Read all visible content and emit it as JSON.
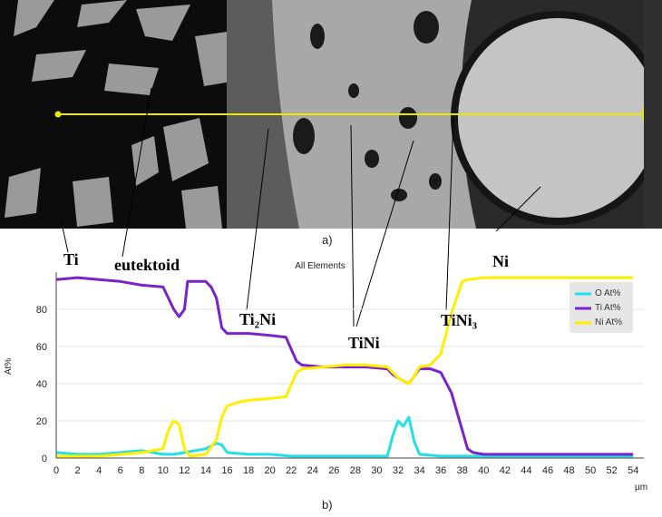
{
  "panel_a": {
    "caption": "a)",
    "scan_line_color": "#e8e800"
  },
  "phase_labels": {
    "ti": "Ti",
    "eutektoid": "eutektoid",
    "ti2ni": "Ti₂Ni",
    "tini": "TiNi",
    "tini3": "TiNi₃",
    "ni": "Ni"
  },
  "chart_data": {
    "type": "line",
    "title": "All Elements",
    "xlabel": "µm",
    "ylabel": "At%",
    "caption": "b)",
    "xlim": [
      0,
      55
    ],
    "ylim": [
      0,
      100
    ],
    "x_ticks": [
      0,
      2,
      4,
      6,
      8,
      10,
      12,
      14,
      16,
      18,
      20,
      22,
      24,
      26,
      28,
      30,
      32,
      34,
      36,
      38,
      40,
      42,
      44,
      46,
      48,
      50,
      52,
      54
    ],
    "y_ticks": [
      0,
      20,
      40,
      60,
      80
    ],
    "legend_position": "top-right",
    "series": [
      {
        "name": "O At%",
        "color": "#22e0e6",
        "points": [
          [
            0,
            3
          ],
          [
            2,
            2
          ],
          [
            4,
            2
          ],
          [
            6,
            3
          ],
          [
            8,
            4
          ],
          [
            10,
            2
          ],
          [
            11,
            2
          ],
          [
            12,
            3
          ],
          [
            13,
            4
          ],
          [
            14,
            5
          ],
          [
            15,
            8
          ],
          [
            15.5,
            7
          ],
          [
            16,
            3
          ],
          [
            18,
            2
          ],
          [
            20,
            2
          ],
          [
            22,
            1
          ],
          [
            24,
            1
          ],
          [
            26,
            1
          ],
          [
            28,
            1
          ],
          [
            30,
            1
          ],
          [
            31,
            1
          ],
          [
            31.5,
            12
          ],
          [
            32,
            20
          ],
          [
            32.5,
            17
          ],
          [
            33,
            22
          ],
          [
            33.5,
            9
          ],
          [
            34,
            2
          ],
          [
            36,
            1
          ],
          [
            38,
            1
          ],
          [
            40,
            1
          ],
          [
            42,
            1
          ],
          [
            44,
            1
          ],
          [
            46,
            1
          ],
          [
            48,
            1
          ],
          [
            50,
            1
          ],
          [
            52,
            1
          ],
          [
            54,
            1
          ]
        ]
      },
      {
        "name": "Ti At%",
        "color": "#7a22cc",
        "points": [
          [
            0,
            96
          ],
          [
            2,
            97
          ],
          [
            4,
            96
          ],
          [
            6,
            95
          ],
          [
            8,
            93
          ],
          [
            10,
            92
          ],
          [
            11,
            80
          ],
          [
            11.5,
            76
          ],
          [
            12,
            80
          ],
          [
            12.3,
            95
          ],
          [
            13,
            95
          ],
          [
            14,
            95
          ],
          [
            14.5,
            92
          ],
          [
            15,
            86
          ],
          [
            15.5,
            70
          ],
          [
            16,
            67
          ],
          [
            18,
            67
          ],
          [
            20,
            66
          ],
          [
            21.5,
            65
          ],
          [
            22.5,
            52
          ],
          [
            23,
            50
          ],
          [
            25,
            49
          ],
          [
            27,
            49
          ],
          [
            29,
            49
          ],
          [
            31,
            48
          ],
          [
            31.5,
            45
          ],
          [
            32,
            43
          ],
          [
            33,
            40
          ],
          [
            33.5,
            44
          ],
          [
            34,
            48
          ],
          [
            35,
            48
          ],
          [
            36,
            46
          ],
          [
            37,
            35
          ],
          [
            38,
            15
          ],
          [
            38.5,
            5
          ],
          [
            39,
            3
          ],
          [
            40,
            2
          ],
          [
            42,
            2
          ],
          [
            44,
            2
          ],
          [
            46,
            2
          ],
          [
            48,
            2
          ],
          [
            50,
            2
          ],
          [
            52,
            2
          ],
          [
            54,
            2
          ]
        ]
      },
      {
        "name": "Ni At%",
        "color": "#ffee00",
        "points": [
          [
            0,
            1
          ],
          [
            2,
            1
          ],
          [
            4,
            1
          ],
          [
            6,
            2
          ],
          [
            8,
            3
          ],
          [
            10,
            5
          ],
          [
            10.5,
            15
          ],
          [
            11,
            20
          ],
          [
            11.5,
            18
          ],
          [
            12,
            5
          ],
          [
            12.5,
            1
          ],
          [
            14,
            2
          ],
          [
            15,
            10
          ],
          [
            15.5,
            22
          ],
          [
            16,
            28
          ],
          [
            17,
            30
          ],
          [
            18,
            31
          ],
          [
            20,
            32
          ],
          [
            21.5,
            33
          ],
          [
            22.5,
            46
          ],
          [
            23,
            48
          ],
          [
            25,
            49
          ],
          [
            27,
            50
          ],
          [
            29,
            50
          ],
          [
            31,
            49
          ],
          [
            31.5,
            46
          ],
          [
            32,
            43
          ],
          [
            33,
            40
          ],
          [
            33.5,
            44
          ],
          [
            34,
            49
          ],
          [
            35,
            50
          ],
          [
            36,
            56
          ],
          [
            37,
            78
          ],
          [
            38,
            95
          ],
          [
            38.5,
            96
          ],
          [
            40,
            97
          ],
          [
            42,
            97
          ],
          [
            44,
            97
          ],
          [
            46,
            97
          ],
          [
            48,
            97
          ],
          [
            50,
            97
          ],
          [
            52,
            97
          ],
          [
            54,
            97
          ]
        ]
      }
    ]
  }
}
